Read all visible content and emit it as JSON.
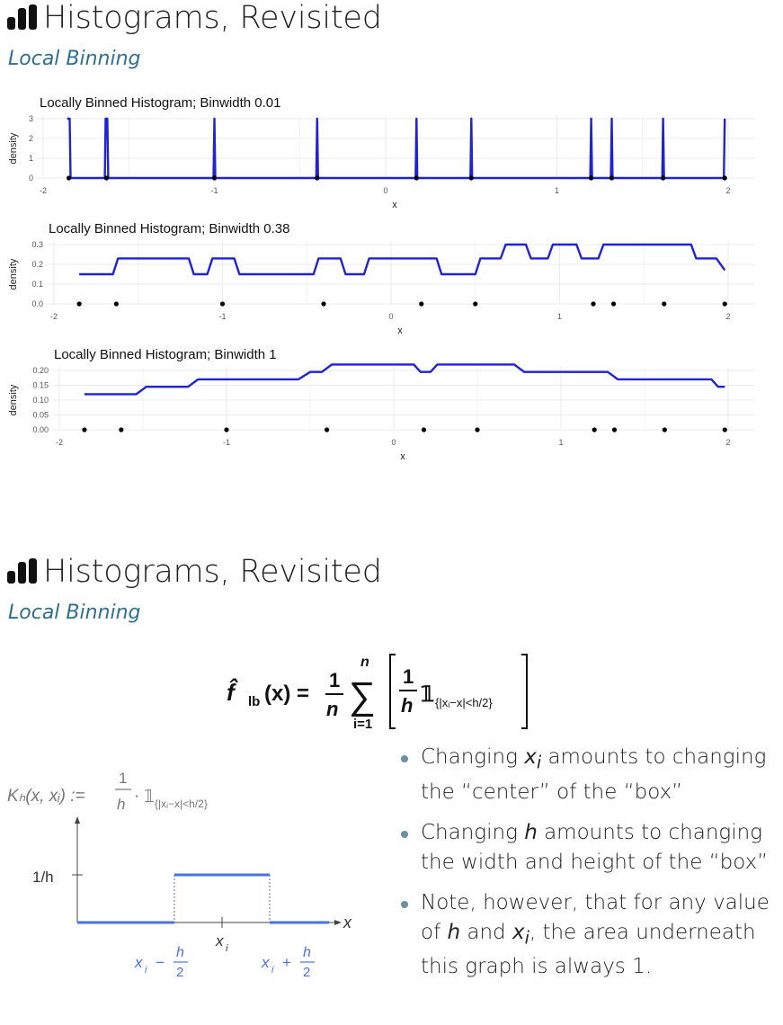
{
  "slides": [
    {
      "title": "Histograms, Revisited",
      "subtitle": "Local Binning",
      "icon": "bar-chart-icon"
    },
    {
      "title": "Histograms, Revisited",
      "subtitle": "Local Binning",
      "icon": "bar-chart-icon"
    }
  ],
  "chart_data": [
    {
      "type": "line",
      "title": "Locally Binned Histogram; Binwidth 0.01",
      "xlabel": "x",
      "ylabel": "density",
      "xlim": [
        -2,
        2
      ],
      "ylim": [
        0,
        3
      ],
      "x_ticks": [
        "-2",
        "-1",
        "0",
        "1",
        "2"
      ],
      "y_ticks": [
        "0",
        "1",
        "2",
        "3"
      ],
      "points": [
        -1.85,
        -1.63,
        -1.0,
        -0.4,
        0.18,
        0.5,
        1.2,
        1.32,
        1.62,
        1.98
      ],
      "series": [
        {
          "x": [
            -1.86,
            -1.845,
            -1.84,
            -1.64,
            -1.635,
            -1.625,
            -1.62,
            -1.005,
            -1.0,
            -0.995,
            -0.405,
            -0.4,
            -0.395,
            0.175,
            0.18,
            0.185,
            0.495,
            0.5,
            0.505,
            1.195,
            1.2,
            1.205,
            1.315,
            1.32,
            1.325,
            1.615,
            1.62,
            1.625,
            1.975,
            1.98
          ],
          "y": [
            3,
            3,
            0,
            0,
            3,
            3,
            0,
            0,
            3,
            0,
            0,
            3,
            0,
            0,
            3,
            0,
            0,
            3,
            0,
            0,
            3,
            0,
            0,
            3,
            0,
            0,
            3,
            0,
            0,
            3
          ]
        }
      ]
    },
    {
      "type": "line",
      "title": "Locally Binned Histogram; Binwidth 0.38",
      "xlabel": "x",
      "ylabel": "density",
      "xlim": [
        -2,
        2
      ],
      "ylim": [
        0,
        0.3
      ],
      "x_ticks": [
        "-2",
        "-1",
        "0",
        "1",
        "2"
      ],
      "y_ticks": [
        "0.0",
        "0.1",
        "0.2",
        "0.3"
      ],
      "points": [
        -1.85,
        -1.63,
        -1.0,
        -0.4,
        0.18,
        0.5,
        1.2,
        1.32,
        1.62,
        1.98
      ],
      "series": [
        {
          "x": [
            -1.85,
            -1.65,
            -1.62,
            -1.2,
            -1.17,
            -1.09,
            -1.06,
            -0.93,
            -0.9,
            -0.46,
            -0.43,
            -0.3,
            -0.27,
            -0.16,
            -0.13,
            0.27,
            0.3,
            0.5,
            0.53,
            0.65,
            0.68,
            0.8,
            0.83,
            0.93,
            0.96,
            1.1,
            1.13,
            1.23,
            1.26,
            1.78,
            1.81,
            1.93,
            1.98
          ],
          "y": [
            0.15,
            0.15,
            0.23,
            0.23,
            0.15,
            0.15,
            0.23,
            0.23,
            0.15,
            0.15,
            0.23,
            0.23,
            0.15,
            0.15,
            0.23,
            0.23,
            0.15,
            0.15,
            0.23,
            0.23,
            0.3,
            0.3,
            0.23,
            0.23,
            0.3,
            0.3,
            0.23,
            0.23,
            0.3,
            0.3,
            0.23,
            0.23,
            0.17
          ]
        }
      ]
    },
    {
      "type": "line",
      "title": "Locally Binned Histogram; Binwidth 1",
      "xlabel": "x",
      "ylabel": "density",
      "xlim": [
        -2,
        2
      ],
      "ylim": [
        0,
        0.2
      ],
      "x_ticks": [
        "-2",
        "-1",
        "0",
        "1",
        "2"
      ],
      "y_ticks": [
        "0.00",
        "0.05",
        "0.10",
        "0.15",
        "0.20"
      ],
      "points": [
        -1.85,
        -1.63,
        -1.0,
        -0.4,
        0.18,
        0.5,
        1.2,
        1.32,
        1.62,
        1.98
      ],
      "series": [
        {
          "x": [
            -1.85,
            -1.54,
            -1.48,
            -1.23,
            -1.17,
            -0.57,
            -0.5,
            -0.43,
            -0.37,
            0.12,
            0.16,
            0.22,
            0.26,
            0.72,
            0.78,
            1.28,
            1.34,
            1.9,
            1.94,
            1.98
          ],
          "y": [
            0.12,
            0.12,
            0.145,
            0.145,
            0.17,
            0.17,
            0.195,
            0.195,
            0.22,
            0.22,
            0.195,
            0.195,
            0.22,
            0.22,
            0.195,
            0.195,
            0.17,
            0.17,
            0.145,
            0.145
          ]
        }
      ]
    }
  ],
  "formula": {
    "lhs": "f̂",
    "lhs_sub": "lb",
    "arg": "(x) =",
    "frac_num": "1",
    "frac_den": "n",
    "sum_top": "n",
    "sum_sym": "∑",
    "sum_bot": "i=1",
    "inner_num": "1",
    "inner_den": "h",
    "indicator": "𝟙",
    "indicator_sub": "{|xᵢ−x|<h/2}"
  },
  "kernel": {
    "lhs": "Kₕ(x, xᵢ) :=",
    "num": "1",
    "den": "h",
    "dot": "·",
    "indicator": "𝟙",
    "indicator_sub": "{|xᵢ−x|<h/2}",
    "y_label": "1/h",
    "x_label": "x",
    "center_label": "x",
    "center_sub": "i",
    "left_label_x": "x",
    "left_label_sub": "i",
    "left_op": "−",
    "right_label_x": "x",
    "right_label_sub": "i",
    "right_op": "+",
    "h": "h",
    "two": "2"
  },
  "bullets": [
    {
      "pre": "Changing ",
      "var": "x",
      "sub": "i",
      "post": " amounts to changing the “center” of the “box”"
    },
    {
      "pre": "Changing ",
      "var": "h",
      "sub": "",
      "post": " amounts to changing the width and height of the “box”"
    },
    {
      "pre": "Note, however, that for any value of ",
      "var": "h",
      "sub": "",
      "mid": " and ",
      "var2": "x",
      "sub2": "i",
      "post": ", the area underneath this graph is always 1."
    }
  ],
  "colors": {
    "line": "#1f22d6",
    "accent": "#4a72e0",
    "subtitle": "#2f6f8f",
    "grid": "#ebebeb"
  }
}
